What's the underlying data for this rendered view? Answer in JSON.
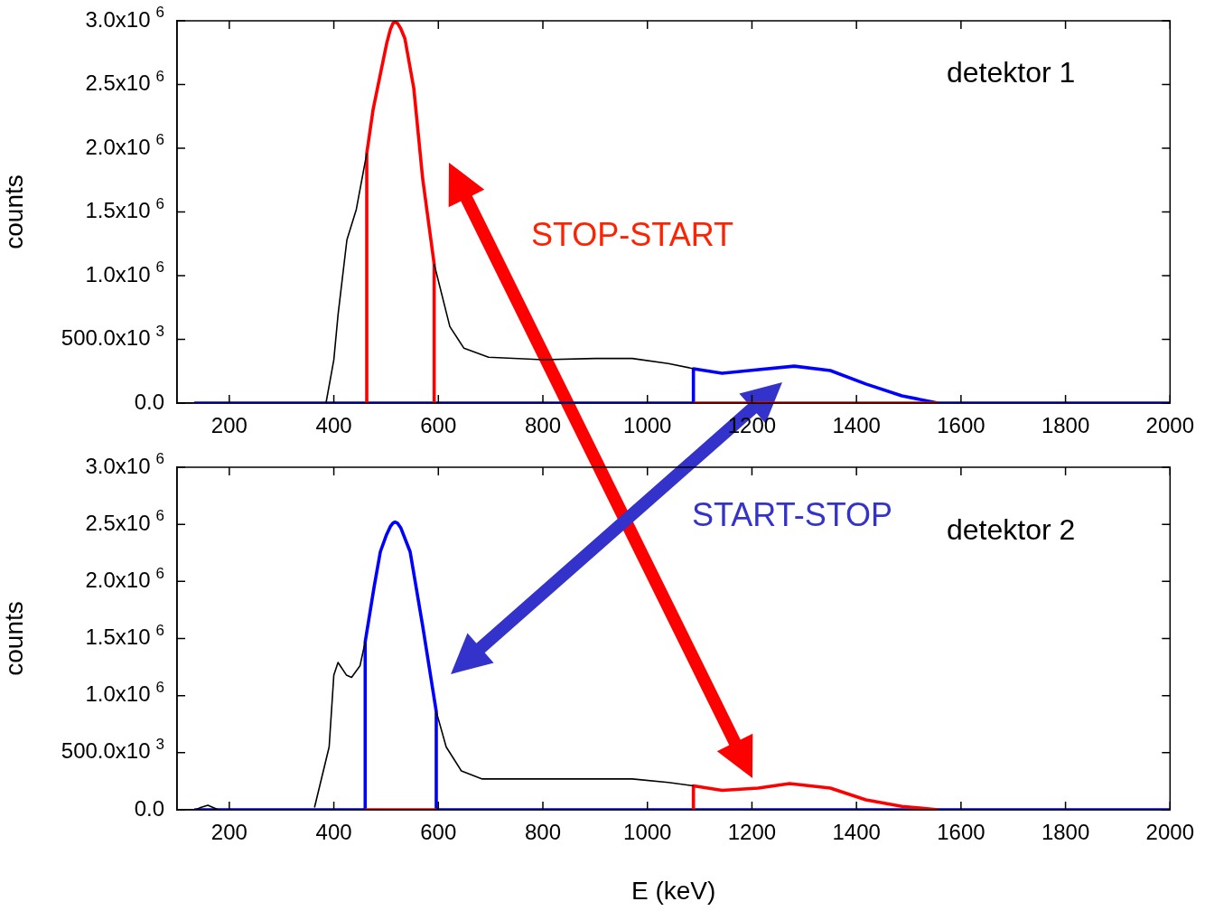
{
  "chart_data": [
    {
      "type": "line",
      "ylabel": "counts",
      "line_style": "solid",
      "xlim": [
        100,
        2000
      ],
      "xticks": [
        200,
        400,
        600,
        800,
        1000,
        1200,
        1400,
        1600,
        1800,
        2000
      ],
      "ylim": [
        0,
        3000000
      ],
      "yticks": [
        {
          "value": 0,
          "label": "0.0"
        },
        {
          "value": 500000,
          "label": "500.0x10$^{3}$"
        },
        {
          "value": 1000000,
          "label": "1.0x10$^{6}$"
        },
        {
          "value": 1500000,
          "label": "1.5x10$^{6}$"
        },
        {
          "value": 2000000,
          "label": "2.0x10$^{6}$"
        },
        {
          "value": 2500000,
          "label": "2.5x10$^{6}$"
        },
        {
          "value": 3000000,
          "label": "3.0x10$^{6}$"
        }
      ],
      "annotations": [
        "detektor 1",
        "STOP-START"
      ],
      "series": [
        {
          "color": "#000000",
          "x": [
            385,
            400,
            408,
            425,
            443,
            463,
            530,
            592,
            622,
            649,
            696,
            800,
            900,
            971,
            1040,
            1088
          ],
          "values": [
            0,
            340000,
            690000,
            1280000,
            1520000,
            1960000,
            null,
            1090000,
            600000,
            430000,
            360000,
            340000,
            350000,
            350000,
            310000,
            270000
          ]
        },
        {
          "color": "#ff0000",
          "x": [
            463,
            463,
            475,
            489,
            501,
            508,
            513,
            517,
            522,
            528,
            536,
            553,
            570,
            592,
            592,
            800,
            1088,
            1556
          ],
          "values": [
            0,
            1960000,
            2300000,
            2580000,
            2820000,
            2930000,
            2980000,
            2990000,
            2980000,
            2940000,
            2860000,
            2470000,
            1760000,
            1090000,
            0,
            null,
            0,
            0
          ]
        },
        {
          "color": "#0000ff",
          "x": [
            133,
            1088,
            1088,
            1143,
            1195,
            1281,
            1350,
            1418,
            1487,
            1556,
            2000
          ],
          "values": [
            0,
            0,
            270000,
            234000,
            255000,
            290000,
            255000,
            150000,
            57000,
            0,
            0
          ]
        }
      ]
    },
    {
      "type": "line",
      "ylabel": "counts",
      "xlabel": "E (keV)",
      "line_style": "solid",
      "xlim": [
        100,
        2000
      ],
      "xticks": [
        200,
        400,
        600,
        800,
        1000,
        1200,
        1400,
        1600,
        1800,
        2000
      ],
      "ylim": [
        0,
        3000000
      ],
      "yticks": [
        {
          "value": 0,
          "label": "0.0"
        },
        {
          "value": 500000,
          "label": "500.0x10$^{3}$"
        },
        {
          "value": 1000000,
          "label": "1.0x10$^{6}$"
        },
        {
          "value": 1500000,
          "label": "1.5x10$^{6}$"
        },
        {
          "value": 2000000,
          "label": "2.0x10$^{6}$"
        },
        {
          "value": 2500000,
          "label": "2.5x10$^{6}$"
        },
        {
          "value": 3000000,
          "label": "3.0x10$^{6}$"
        }
      ],
      "annotations": [
        "START-STOP",
        "detektor 2"
      ],
      "series": [
        {
          "color": "#000000",
          "x": [
            136,
            145,
            159,
            179,
            270,
            363,
            391,
            400,
            408,
            424,
            434,
            450,
            460,
            530,
            596,
            615,
            644,
            684,
            800,
            971,
            1040,
            1088
          ],
          "values": [
            0,
            20000,
            40000,
            0,
            null,
            20000,
            550000,
            1180000,
            1290000,
            1180000,
            1160000,
            1260000,
            1470000,
            null,
            860000,
            550000,
            340000,
            270000,
            270000,
            270000,
            240000,
            210000
          ]
        },
        {
          "color": "#ff0000",
          "x": [
            460,
            596,
            800,
            1088,
            1088,
            1143,
            1212,
            1272,
            1350,
            1418,
            1487,
            1556
          ],
          "values": [
            0,
            0,
            null,
            0,
            210000,
            170000,
            190000,
            230000,
            190000,
            87000,
            30000,
            0
          ]
        },
        {
          "color": "#0000ff",
          "x": [
            133,
            460,
            460,
            477,
            489,
            500,
            508,
            513,
            517,
            522,
            528,
            546,
            570,
            596,
            596,
            2000
          ],
          "values": [
            0,
            0,
            1470000,
            1950000,
            2260000,
            2400000,
            2480000,
            2510000,
            2520000,
            2510000,
            2470000,
            2260000,
            1610000,
            860000,
            0,
            0
          ]
        }
      ]
    }
  ]
}
